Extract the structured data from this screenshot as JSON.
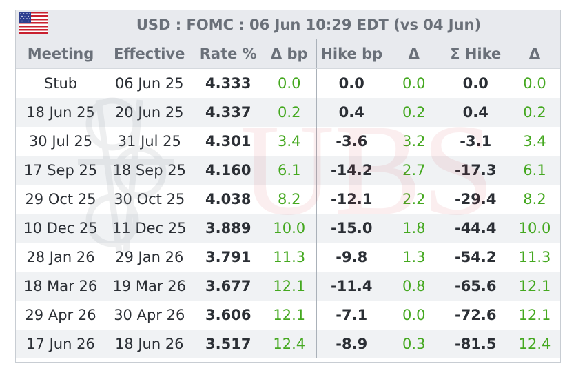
{
  "window": {
    "title": "USD : FOMC : 06 Jun 10:29 EDT (vs 04 Jun)",
    "flag_icon": "us-flag-icon"
  },
  "watermark": {
    "text": "UBS",
    "logo_icon": "ubs-keys-logo-icon"
  },
  "colors": {
    "positive": "#44a81f",
    "header_bg": "#e8eaee",
    "header_text": "#6a7079",
    "row_alt_bg": "#eceef1",
    "watermark_red": "#d11f2a"
  },
  "table": {
    "columns": [
      "Meeting",
      "Effective",
      "Rate %",
      "Δ bp",
      "Hike bp",
      "Δ",
      "Σ Hike",
      "Δ"
    ],
    "rows": [
      {
        "meeting": "Stub",
        "effective": "06 Jun 25",
        "rate": "4.333",
        "delta_bp": "0.0",
        "hike_bp": "0.0",
        "hike_delta": "0.0",
        "sum_hike": "0.0",
        "sum_delta": "0.0"
      },
      {
        "meeting": "18 Jun 25",
        "effective": "20 Jun 25",
        "rate": "4.337",
        "delta_bp": "0.2",
        "hike_bp": "0.4",
        "hike_delta": "0.2",
        "sum_hike": "0.4",
        "sum_delta": "0.2"
      },
      {
        "meeting": "30 Jul 25",
        "effective": "31 Jul 25",
        "rate": "4.301",
        "delta_bp": "3.4",
        "hike_bp": "-3.6",
        "hike_delta": "3.2",
        "sum_hike": "-3.1",
        "sum_delta": "3.4"
      },
      {
        "meeting": "17 Sep 25",
        "effective": "18 Sep 25",
        "rate": "4.160",
        "delta_bp": "6.1",
        "hike_bp": "-14.2",
        "hike_delta": "2.7",
        "sum_hike": "-17.3",
        "sum_delta": "6.1"
      },
      {
        "meeting": "29 Oct 25",
        "effective": "30 Oct 25",
        "rate": "4.038",
        "delta_bp": "8.2",
        "hike_bp": "-12.1",
        "hike_delta": "2.2",
        "sum_hike": "-29.4",
        "sum_delta": "8.2"
      },
      {
        "meeting": "10 Dec 25",
        "effective": "11 Dec 25",
        "rate": "3.889",
        "delta_bp": "10.0",
        "hike_bp": "-15.0",
        "hike_delta": "1.8",
        "sum_hike": "-44.4",
        "sum_delta": "10.0"
      },
      {
        "meeting": "28 Jan 26",
        "effective": "29 Jan 26",
        "rate": "3.791",
        "delta_bp": "11.3",
        "hike_bp": "-9.8",
        "hike_delta": "1.3",
        "sum_hike": "-54.2",
        "sum_delta": "11.3"
      },
      {
        "meeting": "18 Mar 26",
        "effective": "19 Mar 26",
        "rate": "3.677",
        "delta_bp": "12.1",
        "hike_bp": "-11.4",
        "hike_delta": "0.8",
        "sum_hike": "-65.6",
        "sum_delta": "12.1"
      },
      {
        "meeting": "29 Apr 26",
        "effective": "30 Apr 26",
        "rate": "3.606",
        "delta_bp": "12.1",
        "hike_bp": "-7.1",
        "hike_delta": "0.0",
        "sum_hike": "-72.6",
        "sum_delta": "12.1"
      },
      {
        "meeting": "17 Jun 26",
        "effective": "18 Jun 26",
        "rate": "3.517",
        "delta_bp": "12.4",
        "hike_bp": "-8.9",
        "hike_delta": "0.3",
        "sum_hike": "-81.5",
        "sum_delta": "12.4"
      }
    ]
  }
}
